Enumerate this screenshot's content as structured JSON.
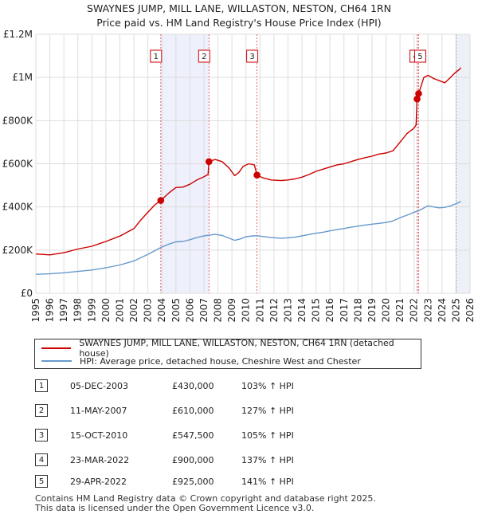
{
  "title_line1": "SWAYNES JUMP, MILL LANE, WILLASTON, NESTON, CH64 1RN",
  "title_line2": "Price paid vs. HM Land Registry's House Price Index (HPI)",
  "chart_data": {
    "type": "line",
    "title": "SWAYNES JUMP, MILL LANE, WILLASTON, NESTON, CH64 1RN — Price paid vs. HM Land Registry's House Price Index (HPI)",
    "xlim": [
      1995,
      2026
    ],
    "ylim": [
      0,
      1200000
    ],
    "x_ticks": [
      1995,
      1996,
      1997,
      1998,
      1999,
      2000,
      2001,
      2002,
      2003,
      2004,
      2005,
      2006,
      2007,
      2008,
      2009,
      2010,
      2011,
      2012,
      2013,
      2014,
      2015,
      2016,
      2017,
      2018,
      2019,
      2020,
      2021,
      2022,
      2023,
      2024,
      2025,
      2026
    ],
    "y_ticks": [
      {
        "value": 0,
        "label": "£0"
      },
      {
        "value": 200000,
        "label": "£200K"
      },
      {
        "value": 400000,
        "label": "£400K"
      },
      {
        "value": 600000,
        "label": "£600K"
      },
      {
        "value": 800000,
        "label": "£800K"
      },
      {
        "value": 1000000,
        "label": "£1M"
      },
      {
        "value": 1200000,
        "label": "£1.2M"
      }
    ],
    "series": [
      {
        "name": "SWAYNES JUMP, MILL LANE, WILLASTON, NESTON, CH64 1RN (detached house)",
        "color": "#cc0000",
        "points": [
          [
            1995.0,
            182000
          ],
          [
            1996.0,
            178000
          ],
          [
            1997.0,
            188000
          ],
          [
            1998.0,
            205000
          ],
          [
            1999.0,
            218000
          ],
          [
            2000.0,
            240000
          ],
          [
            2001.0,
            265000
          ],
          [
            2002.0,
            300000
          ],
          [
            2002.5,
            340000
          ],
          [
            2003.0,
            375000
          ],
          [
            2003.5,
            410000
          ],
          [
            2003.92,
            430000
          ],
          [
            2004.5,
            465000
          ],
          [
            2005.0,
            490000
          ],
          [
            2005.5,
            492000
          ],
          [
            2006.0,
            505000
          ],
          [
            2006.5,
            525000
          ],
          [
            2007.0,
            540000
          ],
          [
            2007.3,
            550000
          ],
          [
            2007.36,
            610000
          ],
          [
            2007.8,
            620000
          ],
          [
            2008.3,
            610000
          ],
          [
            2008.8,
            580000
          ],
          [
            2009.2,
            545000
          ],
          [
            2009.5,
            560000
          ],
          [
            2009.8,
            588000
          ],
          [
            2010.2,
            600000
          ],
          [
            2010.6,
            595000
          ],
          [
            2010.79,
            547500
          ],
          [
            2011.2,
            535000
          ],
          [
            2011.8,
            525000
          ],
          [
            2012.5,
            522000
          ],
          [
            2013.0,
            525000
          ],
          [
            2013.5,
            530000
          ],
          [
            2014.0,
            538000
          ],
          [
            2014.5,
            550000
          ],
          [
            2015.0,
            565000
          ],
          [
            2015.5,
            575000
          ],
          [
            2016.0,
            585000
          ],
          [
            2016.5,
            595000
          ],
          [
            2017.0,
            600000
          ],
          [
            2017.5,
            610000
          ],
          [
            2018.0,
            620000
          ],
          [
            2018.5,
            628000
          ],
          [
            2019.0,
            635000
          ],
          [
            2019.5,
            645000
          ],
          [
            2020.0,
            650000
          ],
          [
            2020.5,
            660000
          ],
          [
            2021.0,
            700000
          ],
          [
            2021.5,
            740000
          ],
          [
            2021.9,
            760000
          ],
          [
            2022.05,
            770000
          ],
          [
            2022.15,
            780000
          ],
          [
            2022.22,
            900000
          ],
          [
            2022.33,
            925000
          ],
          [
            2022.7,
            1000000
          ],
          [
            2023.0,
            1010000
          ],
          [
            2023.4,
            995000
          ],
          [
            2023.8,
            985000
          ],
          [
            2024.2,
            975000
          ],
          [
            2024.6,
            1000000
          ],
          [
            2024.9,
            1020000
          ],
          [
            2025.2,
            1035000
          ],
          [
            2025.35,
            1045000
          ]
        ]
      },
      {
        "name": "HPI: Average price, detached house, Cheshire West and Chester",
        "color": "#6699cc",
        "points": [
          [
            1995.0,
            88000
          ],
          [
            1996.0,
            90000
          ],
          [
            1997.0,
            95000
          ],
          [
            1998.0,
            101000
          ],
          [
            1999.0,
            108000
          ],
          [
            2000.0,
            118000
          ],
          [
            2001.0,
            131000
          ],
          [
            2002.0,
            150000
          ],
          [
            2003.0,
            180000
          ],
          [
            2003.92,
            212000
          ],
          [
            2004.5,
            228000
          ],
          [
            2005.0,
            238000
          ],
          [
            2005.5,
            240000
          ],
          [
            2006.0,
            248000
          ],
          [
            2006.5,
            258000
          ],
          [
            2007.0,
            266000
          ],
          [
            2007.36,
            269000
          ],
          [
            2007.8,
            273000
          ],
          [
            2008.3,
            268000
          ],
          [
            2008.8,
            255000
          ],
          [
            2009.2,
            245000
          ],
          [
            2009.6,
            252000
          ],
          [
            2010.0,
            262000
          ],
          [
            2010.5,
            266000
          ],
          [
            2010.79,
            267000
          ],
          [
            2011.2,
            263000
          ],
          [
            2011.8,
            258000
          ],
          [
            2012.5,
            255000
          ],
          [
            2013.0,
            257000
          ],
          [
            2013.5,
            260000
          ],
          [
            2014.0,
            266000
          ],
          [
            2014.5,
            272000
          ],
          [
            2015.0,
            278000
          ],
          [
            2015.5,
            283000
          ],
          [
            2016.0,
            289000
          ],
          [
            2016.5,
            295000
          ],
          [
            2017.0,
            300000
          ],
          [
            2017.5,
            306000
          ],
          [
            2018.0,
            311000
          ],
          [
            2018.5,
            316000
          ],
          [
            2019.0,
            320000
          ],
          [
            2019.5,
            324000
          ],
          [
            2020.0,
            328000
          ],
          [
            2020.5,
            335000
          ],
          [
            2021.0,
            350000
          ],
          [
            2021.5,
            362000
          ],
          [
            2022.0,
            375000
          ],
          [
            2022.23,
            380000
          ],
          [
            2022.33,
            382000
          ],
          [
            2022.7,
            395000
          ],
          [
            2023.0,
            405000
          ],
          [
            2023.4,
            400000
          ],
          [
            2023.8,
            396000
          ],
          [
            2024.2,
            398000
          ],
          [
            2024.6,
            405000
          ],
          [
            2025.0,
            415000
          ],
          [
            2025.35,
            425000
          ]
        ]
      }
    ],
    "sales": [
      {
        "n": "1",
        "x": 2003.92,
        "price": 430000
      },
      {
        "n": "2",
        "x": 2007.36,
        "price": 610000
      },
      {
        "n": "3",
        "x": 2010.79,
        "price": 547500
      },
      {
        "n": "4",
        "x": 2022.22,
        "price": 900000
      },
      {
        "n": "5",
        "x": 2022.33,
        "price": 925000
      }
    ],
    "forecast_from": 2025.0
  },
  "legend": {
    "property_label": "SWAYNES JUMP, MILL LANE, WILLASTON, NESTON, CH64 1RN (detached house)",
    "hpi_label": "HPI: Average price, detached house, Cheshire West and Chester",
    "property_color": "#cc0000",
    "hpi_color": "#6699cc"
  },
  "sales_table": [
    {
      "n": "1",
      "date": "05-DEC-2003",
      "price": "£430,000",
      "hpi": "103% ↑ HPI"
    },
    {
      "n": "2",
      "date": "11-MAY-2007",
      "price": "£610,000",
      "hpi": "127% ↑ HPI"
    },
    {
      "n": "3",
      "date": "15-OCT-2010",
      "price": "£547,500",
      "hpi": "105% ↑ HPI"
    },
    {
      "n": "4",
      "date": "23-MAR-2022",
      "price": "£900,000",
      "hpi": "137% ↑ HPI"
    },
    {
      "n": "5",
      "date": "29-APR-2022",
      "price": "£925,000",
      "hpi": "141% ↑ HPI"
    }
  ],
  "footer": {
    "line1": "Contains HM Land Registry data © Crown copyright and database right 2025.",
    "line2": "This data is licensed under the Open Government Licence v3.0."
  }
}
